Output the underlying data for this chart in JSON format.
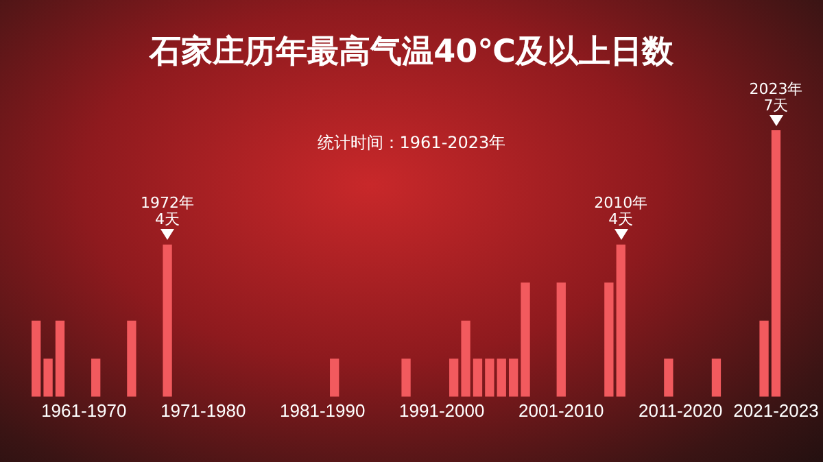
{
  "chart_data": {
    "type": "bar",
    "title": "石家庄历年最高气温40℃及以上日数",
    "subtitle": "统计时间：1961-2023年",
    "categories": [
      null,
      null,
      null,
      null,
      "1961-1970",
      null,
      null,
      null,
      null,
      null,
      null,
      null,
      null,
      null,
      "1971-1980",
      null,
      null,
      null,
      null,
      null,
      null,
      null,
      null,
      null,
      "1981-1990",
      null,
      null,
      null,
      null,
      null,
      null,
      null,
      null,
      null,
      "1991-2000",
      null,
      null,
      null,
      null,
      null,
      null,
      null,
      null,
      null,
      "2001-2010",
      null,
      null,
      null,
      null,
      null,
      null,
      null,
      null,
      null,
      "2011-2020",
      null,
      null,
      null,
      null,
      null,
      null,
      null,
      "2021-2023"
    ],
    "values": [
      2,
      1,
      2,
      0,
      0,
      1,
      0,
      0,
      2,
      0,
      0,
      4,
      0,
      0,
      0,
      0,
      0,
      0,
      0,
      0,
      0,
      0,
      0,
      0,
      0,
      1,
      0,
      0,
      0,
      0,
      0,
      1,
      0,
      0,
      0,
      1,
      2,
      1,
      1,
      1,
      1,
      3,
      0,
      0,
      3,
      0,
      0,
      0,
      3,
      4,
      0,
      0,
      0,
      1,
      0,
      0,
      0,
      1,
      0,
      0,
      0,
      2,
      7
    ],
    "value_labels": [
      null,
      null,
      null,
      null,
      null,
      null,
      null,
      null,
      null,
      null,
      null,
      "1972年\n4天",
      null,
      null,
      null,
      null,
      null,
      null,
      null,
      null,
      null,
      null,
      null,
      null,
      null,
      null,
      null,
      null,
      null,
      null,
      null,
      null,
      null,
      null,
      null,
      null,
      null,
      null,
      null,
      null,
      null,
      null,
      null,
      null,
      null,
      null,
      null,
      null,
      null,
      "2010年\n4天",
      null,
      null,
      null,
      null,
      null,
      null,
      null,
      null,
      null,
      null,
      null,
      null,
      "2023年\n7天"
    ],
    "color": "#f25a5e",
    "tick_labels": "x",
    "grid": false,
    "legend": false
  }
}
